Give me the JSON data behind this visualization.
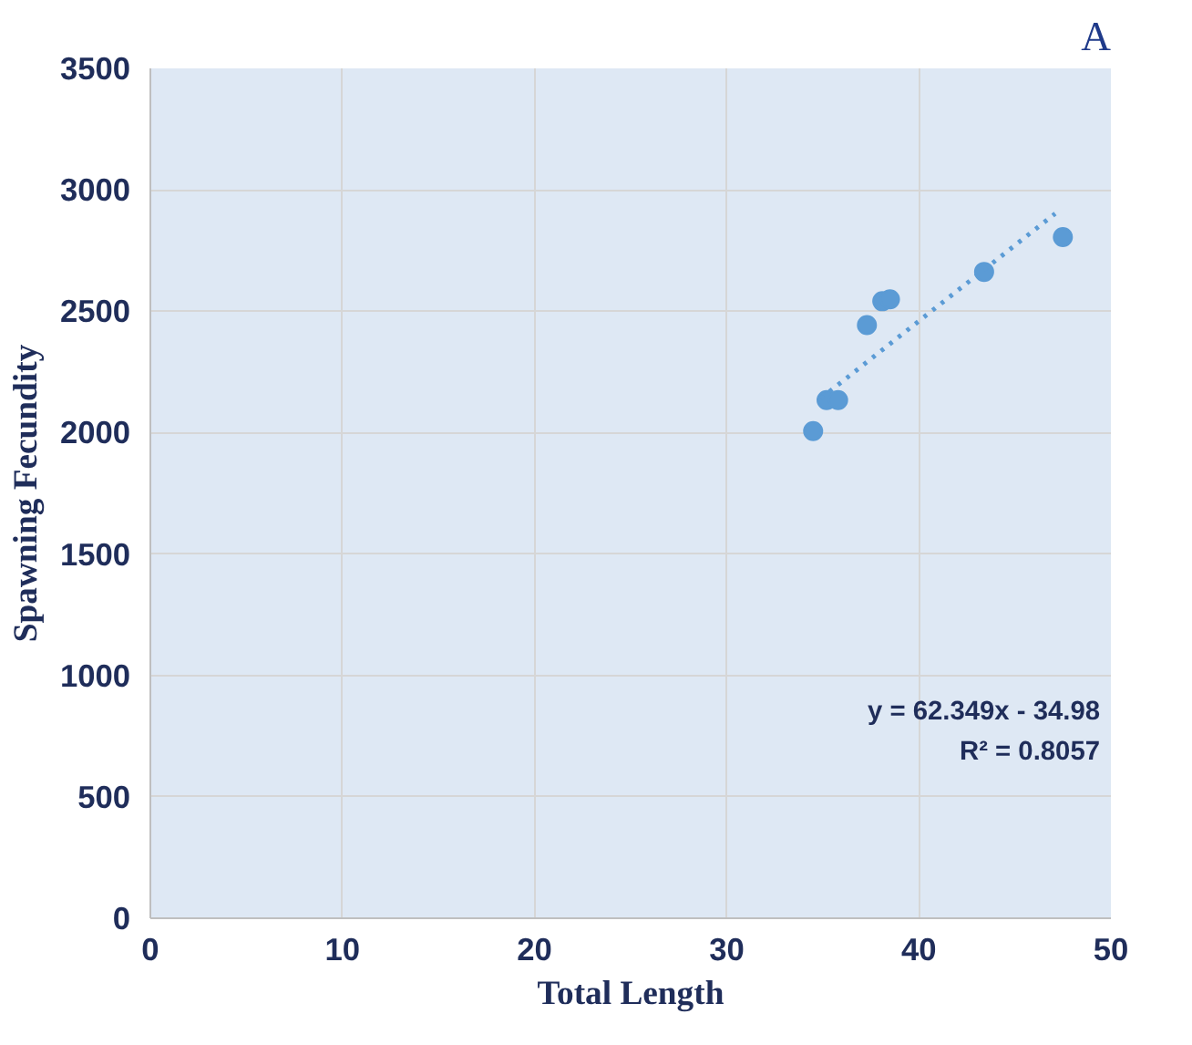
{
  "chart_data": {
    "type": "scatter",
    "xlabel": "Total Length",
    "ylabel": "Spawning Fecundity",
    "xlim": [
      0,
      50
    ],
    "xticks": [
      0,
      10,
      20,
      30,
      40,
      50
    ],
    "ylim": [
      0,
      3500
    ],
    "yticks": [
      0,
      500,
      1000,
      1500,
      2000,
      2500,
      3000,
      3500
    ],
    "grid": true,
    "marker": "circle",
    "series": [
      {
        "color": "#5b9bd5",
        "x": [
          34.5,
          35.2,
          35.8,
          37.3,
          38.1,
          38.5,
          43.4,
          47.5
        ],
        "values": [
          2006,
          2134,
          2134,
          2443,
          2541,
          2549,
          2662,
          2805
        ]
      },
      {
        "type": "line",
        "line_style": "dotted",
        "marker": "none",
        "color": "#5b9bd5",
        "x": [
          34.9,
          47.1
        ],
        "values": [
          2141,
          2902
        ]
      }
    ],
    "annotations": [
      "A",
      "y = 62.349x - 34.98",
      "R² = 0.8057"
    ]
  }
}
